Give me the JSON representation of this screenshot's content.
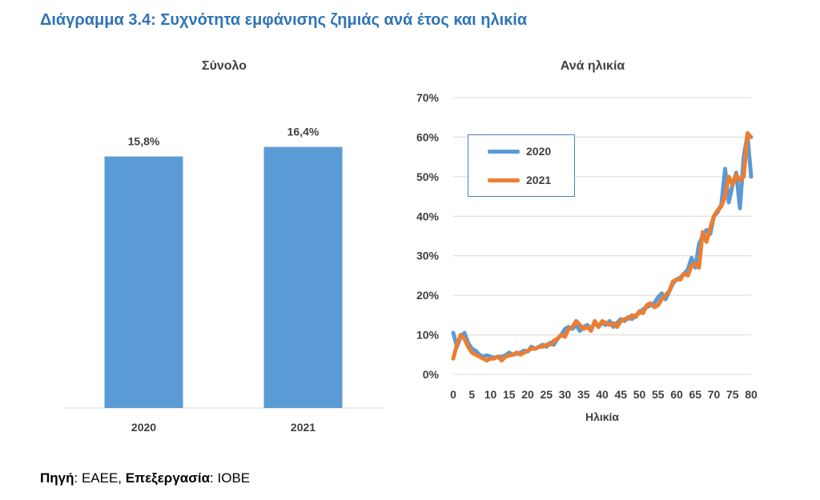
{
  "header": {
    "title": "Διάγραμμα 3.4: Συχνότητα εμφάνισης ζημιάς ανά έτος και ηλικία"
  },
  "colors": {
    "series_2020": "#5b9bd5",
    "series_2021": "#ed7d31",
    "bar": "#5b9bd5",
    "title": "#2e74b5"
  },
  "chart_data": [
    {
      "type": "bar",
      "title": "Σύνολο",
      "categories": [
        "2020",
        "2021"
      ],
      "values": [
        15.8,
        16.4
      ],
      "data_labels": [
        "15,8%",
        "16,4%"
      ],
      "ylim": [
        0,
        20
      ],
      "grid": false
    },
    {
      "type": "line",
      "title": "Ανά ηλικία",
      "xlabel": "Ηλικία",
      "ylabel": "",
      "ylim": [
        0,
        70
      ],
      "yticks": [
        "0%",
        "10%",
        "20%",
        "30%",
        "40%",
        "50%",
        "60%",
        "70%"
      ],
      "xticks": [
        "0",
        "5",
        "10",
        "15",
        "20",
        "25",
        "30",
        "35",
        "40",
        "45",
        "50",
        "55",
        "60",
        "65",
        "70",
        "75",
        "80"
      ],
      "grid": true,
      "legend_position": "top-left",
      "x": [
        0,
        1,
        2,
        3,
        4,
        5,
        6,
        7,
        8,
        9,
        10,
        11,
        12,
        13,
        14,
        15,
        16,
        17,
        18,
        19,
        20,
        21,
        22,
        23,
        24,
        25,
        26,
        27,
        28,
        29,
        30,
        31,
        32,
        33,
        34,
        35,
        36,
        37,
        38,
        39,
        40,
        41,
        42,
        43,
        44,
        45,
        46,
        47,
        48,
        49,
        50,
        51,
        52,
        53,
        54,
        55,
        56,
        57,
        58,
        59,
        60,
        61,
        62,
        63,
        64,
        65,
        66,
        67,
        68,
        69,
        70,
        71,
        72,
        73,
        74,
        75,
        76,
        77,
        78,
        79,
        80
      ],
      "series": [
        {
          "name": "2020",
          "values": [
            10.5,
            7.0,
            9.5,
            10.5,
            8.0,
            6.5,
            6.0,
            5.0,
            4.5,
            4.8,
            4.5,
            4.2,
            4.5,
            4.5,
            4.8,
            5.5,
            5.0,
            5.2,
            5.5,
            6.0,
            5.8,
            7.0,
            6.5,
            7.0,
            7.5,
            7.0,
            8.0,
            7.5,
            9.0,
            10.0,
            11.5,
            12.0,
            11.5,
            12.5,
            11.0,
            12.0,
            12.5,
            11.5,
            13.0,
            12.0,
            13.0,
            12.5,
            13.5,
            12.0,
            13.0,
            14.0,
            13.5,
            14.5,
            14.0,
            15.0,
            15.5,
            16.5,
            17.0,
            17.5,
            18.0,
            19.5,
            20.5,
            19.0,
            21.0,
            23.0,
            24.0,
            24.5,
            25.5,
            26.5,
            29.5,
            27.0,
            33.0,
            35.0,
            36.5,
            35.5,
            40.0,
            41.0,
            43.0,
            52.0,
            43.5,
            48.0,
            51.0,
            42.0,
            55.0,
            60.5,
            50.0
          ]
        },
        {
          "name": "2021",
          "values": [
            4.0,
            7.5,
            10.0,
            9.0,
            7.0,
            5.5,
            5.0,
            4.5,
            4.0,
            3.5,
            4.0,
            4.0,
            4.5,
            3.5,
            4.5,
            4.8,
            5.0,
            5.5,
            5.0,
            5.5,
            6.0,
            6.5,
            6.5,
            7.0,
            7.0,
            7.5,
            7.5,
            8.5,
            9.0,
            10.0,
            9.5,
            11.5,
            12.0,
            13.5,
            12.5,
            11.5,
            12.0,
            11.0,
            13.5,
            12.0,
            13.5,
            13.0,
            12.5,
            13.0,
            12.0,
            13.5,
            14.0,
            14.0,
            15.0,
            14.5,
            16.0,
            15.5,
            17.5,
            18.0,
            17.0,
            17.5,
            19.0,
            20.0,
            21.0,
            23.5,
            24.0,
            24.0,
            25.5,
            25.0,
            27.5,
            28.0,
            27.0,
            36.0,
            33.5,
            37.0,
            40.0,
            41.5,
            42.5,
            45.0,
            50.0,
            48.0,
            50.5,
            49.0,
            50.0,
            61.0,
            60.0
          ]
        }
      ]
    }
  ],
  "source": {
    "label1": "Πηγή",
    "value1": ": ΕΑΕΕ, ",
    "label2": "Επεξεργασία",
    "value2": ": ΙΟΒΕ"
  }
}
